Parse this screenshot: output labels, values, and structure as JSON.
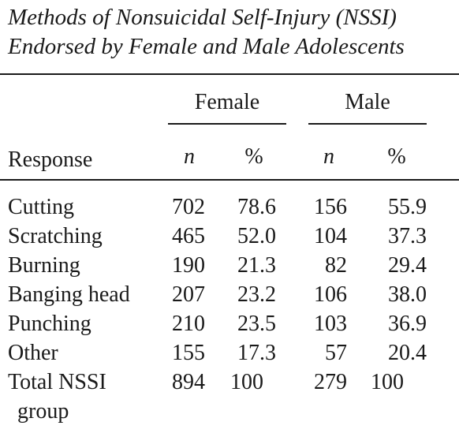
{
  "caption": {
    "line1": "Methods of Nonsuicidal Self-Injury (NSSI)",
    "line2": "Endorsed by Female and Male Adolescents"
  },
  "header": {
    "group_female": "Female",
    "group_male": "Male",
    "response_label": "Response",
    "n_label": "n",
    "pct_label": "%"
  },
  "rows": [
    {
      "response": "Cutting",
      "f_n": "702",
      "f_pct": "78.6",
      "m_n": "156",
      "m_pct": "55.9"
    },
    {
      "response": "Scratching",
      "f_n": "465",
      "f_pct": "52.0",
      "m_n": "104",
      "m_pct": "37.3"
    },
    {
      "response": "Burning",
      "f_n": "190",
      "f_pct": "21.3",
      "m_n": "82",
      "m_pct": "29.4"
    },
    {
      "response": "Banging head",
      "f_n": "207",
      "f_pct": "23.2",
      "m_n": "106",
      "m_pct": "38.0"
    },
    {
      "response": "Punching",
      "f_n": "210",
      "f_pct": "23.5",
      "m_n": "103",
      "m_pct": "36.9"
    },
    {
      "response": "Other",
      "f_n": "155",
      "f_pct": "17.3",
      "m_n": "57",
      "m_pct": "20.4"
    }
  ],
  "total": {
    "response_line1": "Total NSSI",
    "response_line2": "group",
    "f_n": "894",
    "f_pct": "100",
    "m_n": "279",
    "m_pct": "100"
  }
}
